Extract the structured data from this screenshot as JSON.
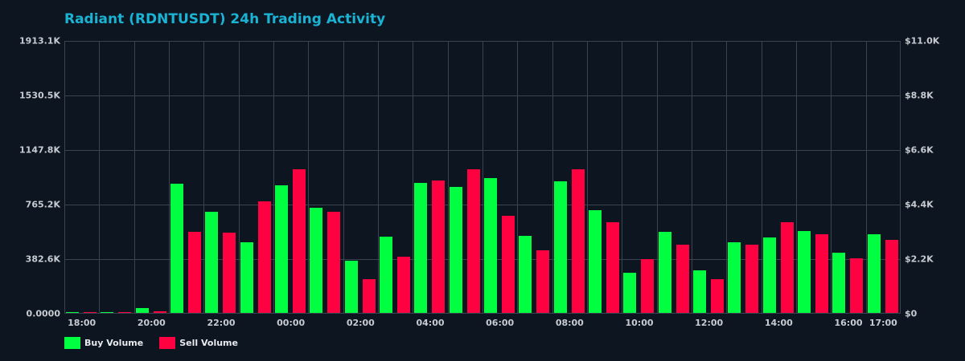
{
  "title": "Radiant (RDNTUSDT) 24h Trading Activity",
  "colors": {
    "background": "#0d1520",
    "title": "#1ab3d3",
    "buy": "#00ff41",
    "sell": "#ff0040",
    "grid": "#3a4350",
    "tick_text": "#c8ccd2"
  },
  "axes": {
    "left_ticks": [
      "1913.1K",
      "1530.5K",
      "1147.8K",
      "765.2K",
      "382.6K",
      "0.0000"
    ],
    "right_ticks": [
      "$11.0K",
      "$8.8K",
      "$6.6K",
      "$4.4K",
      "$2.2K",
      "$0"
    ],
    "x_ticks": [
      {
        "label": "18:00",
        "hour_index": 0
      },
      {
        "label": "20:00",
        "hour_index": 2
      },
      {
        "label": "22:00",
        "hour_index": 4
      },
      {
        "label": "00:00",
        "hour_index": 6
      },
      {
        "label": "02:00",
        "hour_index": 8
      },
      {
        "label": "04:00",
        "hour_index": 10
      },
      {
        "label": "06:00",
        "hour_index": 12
      },
      {
        "label": "08:00",
        "hour_index": 14
      },
      {
        "label": "10:00",
        "hour_index": 16
      },
      {
        "label": "12:00",
        "hour_index": 18
      },
      {
        "label": "14:00",
        "hour_index": 20
      },
      {
        "label": "16:00",
        "hour_index": 22
      },
      {
        "label": "17:00",
        "hour_index": 23
      }
    ]
  },
  "legend": [
    {
      "label": "Buy Volume",
      "color": "#00ff41"
    },
    {
      "label": "Sell Volume",
      "color": "#ff0040"
    }
  ],
  "chart_data": {
    "type": "bar",
    "title": "Radiant (RDNTUSDT) 24h Trading Activity",
    "xlabel": "",
    "ylabel": "",
    "ylim": [
      0,
      1913.1
    ],
    "y_unit": "K",
    "y2lim": [
      0,
      11.0
    ],
    "y2_unit": "$K",
    "grid": true,
    "legend_position": "bottom-left",
    "categories": [
      "18:00",
      "19:00",
      "20:00",
      "21:00",
      "22:00",
      "23:00",
      "00:00",
      "01:00",
      "02:00",
      "03:00",
      "04:00",
      "05:00",
      "06:00",
      "07:00",
      "08:00",
      "09:00",
      "10:00",
      "11:00",
      "12:00",
      "13:00",
      "14:00",
      "15:00",
      "16:00",
      "17:00"
    ],
    "series": [
      {
        "name": "Buy Volume",
        "color": "#00ff41",
        "values": [
          3.2,
          3.0,
          33.8,
          906.0,
          709.0,
          495.2,
          894.7,
          737.1,
          365.8,
          534.6,
          911.6,
          883.4,
          945.3,
          540.2,
          922.8,
          720.3,
          281.4,
          568.3,
          298.2,
          495.2,
          528.9,
          573.9,
          422.0,
          551.4
        ]
      },
      {
        "name": "Sell Volume",
        "color": "#ff0040",
        "values": [
          2.8,
          2.5,
          11.3,
          568.3,
          562.7,
          782.2,
          1007.2,
          709.0,
          236.3,
          393.9,
          928.5,
          1007.2,
          680.9,
          438.9,
          1007.2,
          635.9,
          377.0,
          478.3,
          236.3,
          478.3,
          635.9,
          551.4,
          382.6,
          512.1
        ]
      }
    ]
  }
}
